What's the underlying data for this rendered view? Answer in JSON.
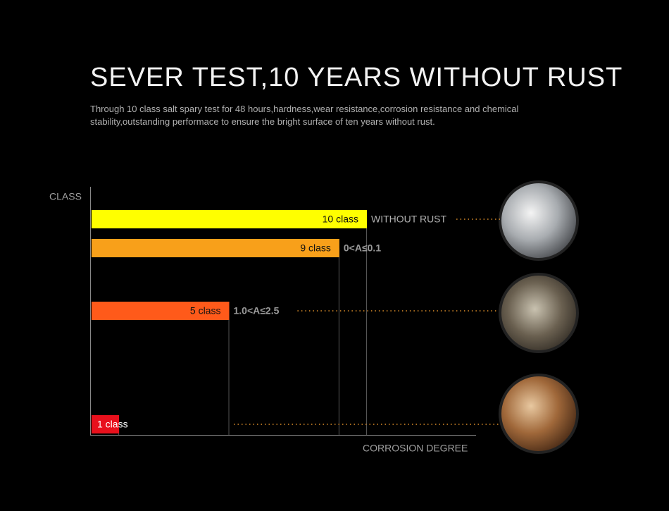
{
  "chart_data": {
    "type": "bar",
    "orientation": "horizontal",
    "title": "SEVER TEST,10 YEARS WITHOUT RUST",
    "subtitle": "Through 10 class salt spary test for 48 hours,hardness,wear resistance,corrosion resistance and chemical stability,outstanding performace to ensure the bright surface of ten years without rust.",
    "y_label": "CLASS",
    "x_label": "CORROSION DEGREE",
    "categories": [
      "10 class",
      "9 class",
      "5 class",
      "1 class"
    ],
    "values": [
      10,
      9,
      5,
      1
    ],
    "value_labels": [
      "10 class",
      "9 class",
      "5 class",
      "1 class"
    ],
    "annotations": [
      "WITHOUT RUST",
      "0<A≤0.1",
      "1.0<A≤2.5",
      null
    ],
    "colors": [
      "#ffff00",
      "#f8a01a",
      "#ff5a1a",
      "#e8101c"
    ],
    "xlim": [
      0,
      10
    ]
  }
}
